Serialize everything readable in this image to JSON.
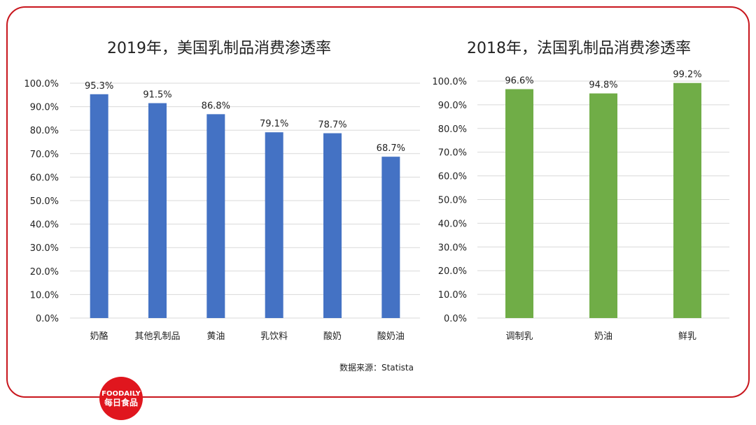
{
  "source_note": "数据来源：Statista",
  "logo": {
    "text_en": "FOODAILY",
    "text_cn": "每日食品"
  },
  "colors": {
    "frame": "#c8161d",
    "usa_bar": "#4472c4",
    "france_bar": "#70ad47",
    "grid": "#d9d9d9",
    "logo": "#e0161e"
  },
  "chart_data": [
    {
      "type": "bar",
      "title": "2019年，美国乳制品消费渗透率",
      "categories": [
        "奶酪",
        "其他乳制品",
        "黄油",
        "乳饮料",
        "酸奶",
        "酸奶油"
      ],
      "values": [
        95.3,
        91.5,
        86.8,
        79.1,
        78.7,
        68.7
      ],
      "data_labels": [
        "95.3%",
        "91.5%",
        "86.8%",
        "79.1%",
        "78.7%",
        "68.7%"
      ],
      "ylim": [
        0,
        100
      ],
      "yticks": [
        "0.0%",
        "10.0%",
        "20.0%",
        "30.0%",
        "40.0%",
        "50.0%",
        "60.0%",
        "70.0%",
        "80.0%",
        "90.0%",
        "100.0%"
      ],
      "grid": true,
      "color": "#4472c4"
    },
    {
      "type": "bar",
      "title": "2018年，法国乳制品消费渗透率",
      "categories": [
        "调制乳",
        "奶油",
        "鲜乳"
      ],
      "values": [
        96.6,
        94.8,
        99.2
      ],
      "data_labels": [
        "96.6%",
        "94.8%",
        "99.2%"
      ],
      "ylim": [
        0,
        100
      ],
      "yticks": [
        "0.0%",
        "10.0%",
        "20.0%",
        "30.0%",
        "40.0%",
        "50.0%",
        "60.0%",
        "70.0%",
        "80.0%",
        "90.0%",
        "100.0%"
      ],
      "grid": true,
      "color": "#70ad47"
    }
  ]
}
